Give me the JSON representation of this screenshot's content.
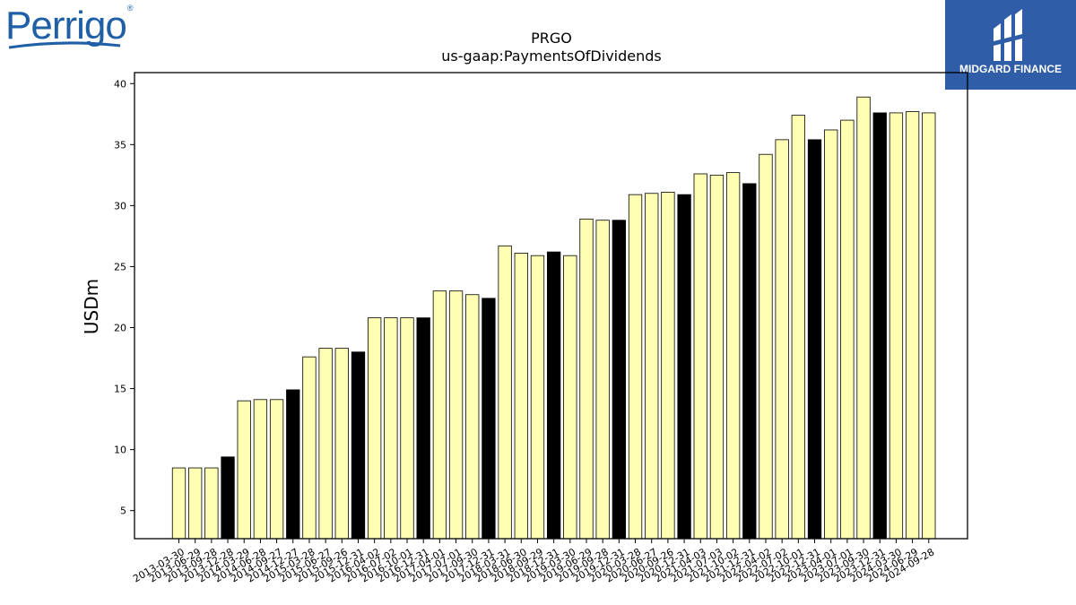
{
  "logos": {
    "left_text": "Perrigo",
    "left_tm": "®",
    "right_text": "MIDGARD FINANCE",
    "right_bg": "#2f5da8"
  },
  "chart_data": {
    "type": "bar",
    "title": "PRGO",
    "subtitle": "us-gaap:PaymentsOfDividends",
    "xlabel": "",
    "ylabel": "USDm",
    "ylim": [
      2.7,
      40.9
    ],
    "yticks": [
      5,
      10,
      15,
      20,
      25,
      30,
      35,
      40
    ],
    "grid": false,
    "colors": {
      "quarter": "#ffffb3",
      "annual": "#000000"
    },
    "categories": [
      "2013-03-30",
      "2013-06-29",
      "2013-09-28",
      "2013-12-28",
      "2014-03-29",
      "2014-06-28",
      "2014-09-27",
      "2014-12-27",
      "2015-03-28",
      "2015-06-27",
      "2015-09-26",
      "2015-12-31",
      "2016-04-02",
      "2016-07-02",
      "2016-10-01",
      "2016-12-31",
      "2017-04-01",
      "2017-07-01",
      "2017-09-30",
      "2017-12-31",
      "2018-03-31",
      "2018-06-30",
      "2018-09-29",
      "2018-12-31",
      "2019-03-30",
      "2019-06-29",
      "2019-09-28",
      "2019-12-31",
      "2020-03-28",
      "2020-06-27",
      "2020-09-26",
      "2020-12-31",
      "2021-04-03",
      "2021-07-03",
      "2021-10-02",
      "2021-12-31",
      "2022-04-02",
      "2022-07-02",
      "2022-10-01",
      "2022-12-31",
      "2023-04-01",
      "2023-07-01",
      "2023-09-30",
      "2023-12-31",
      "2024-03-30",
      "2024-06-29",
      "2024-09-28"
    ],
    "values": [
      8.5,
      8.5,
      8.5,
      9.4,
      14.0,
      14.1,
      14.1,
      14.9,
      17.6,
      18.3,
      18.3,
      18.0,
      20.8,
      20.8,
      20.8,
      20.8,
      23.0,
      23.0,
      22.7,
      22.4,
      26.7,
      26.1,
      25.9,
      26.2,
      25.9,
      28.9,
      28.8,
      28.8,
      30.9,
      31.0,
      31.1,
      30.9,
      32.6,
      32.5,
      32.7,
      31.8,
      34.2,
      35.4,
      37.4,
      35.4,
      36.2,
      37.0,
      38.9,
      37.6,
      37.6,
      37.7,
      37.6
    ],
    "annual_flags": [
      false,
      false,
      false,
      true,
      false,
      false,
      false,
      true,
      false,
      false,
      false,
      true,
      false,
      false,
      false,
      true,
      false,
      false,
      false,
      true,
      false,
      false,
      false,
      true,
      false,
      false,
      false,
      true,
      false,
      false,
      false,
      true,
      false,
      false,
      false,
      true,
      false,
      false,
      false,
      true,
      false,
      false,
      false,
      true,
      false,
      false,
      false
    ]
  }
}
